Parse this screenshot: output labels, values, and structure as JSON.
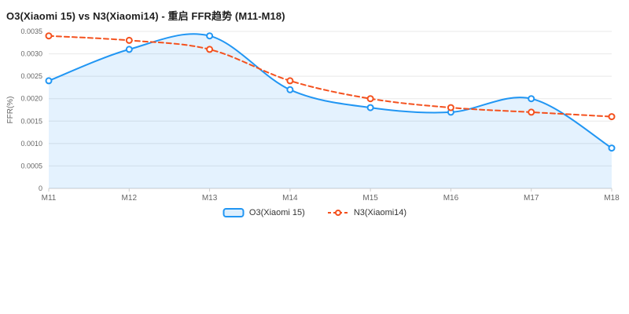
{
  "chart_data": {
    "type": "line",
    "title": "O3(Xiaomi 15) vs N3(Xiaomi14) - 重启 FFR趋势 (M11-M18)",
    "ylabel": "FFR(%)",
    "categories": [
      "M11",
      "M12",
      "M13",
      "M14",
      "M15",
      "M16",
      "M17",
      "M18"
    ],
    "series": [
      {
        "name": "O3(Xiaomi 15)",
        "values": [
          0.0024,
          0.0031,
          0.0034,
          0.0022,
          0.0018,
          0.0017,
          0.002,
          0.0009
        ],
        "color": "#2196f3",
        "style": "solid",
        "area": true
      },
      {
        "name": "N3(Xiaomi14)",
        "values": [
          0.0034,
          0.0033,
          0.0031,
          0.0024,
          0.002,
          0.0018,
          0.0017,
          0.0016
        ],
        "color": "#f4511e",
        "style": "dashed",
        "area": false
      }
    ],
    "ylim": [
      0,
      0.0035
    ],
    "ytick_values": [
      0,
      0.0005,
      0.001,
      0.0015,
      0.002,
      0.0025,
      0.003,
      0.0035
    ],
    "ytick_labels": [
      "0",
      "0.0005",
      "0.0010",
      "0.0015",
      "0.0020",
      "0.0025",
      "0.0030",
      "0.0035"
    ],
    "grid": true,
    "legend_position": "bottom",
    "colors": {
      "grid_line": "#e8e8e8",
      "axis_line": "#cccccc",
      "axis_text": "#666666",
      "title_text": "#1f1f1f"
    }
  }
}
